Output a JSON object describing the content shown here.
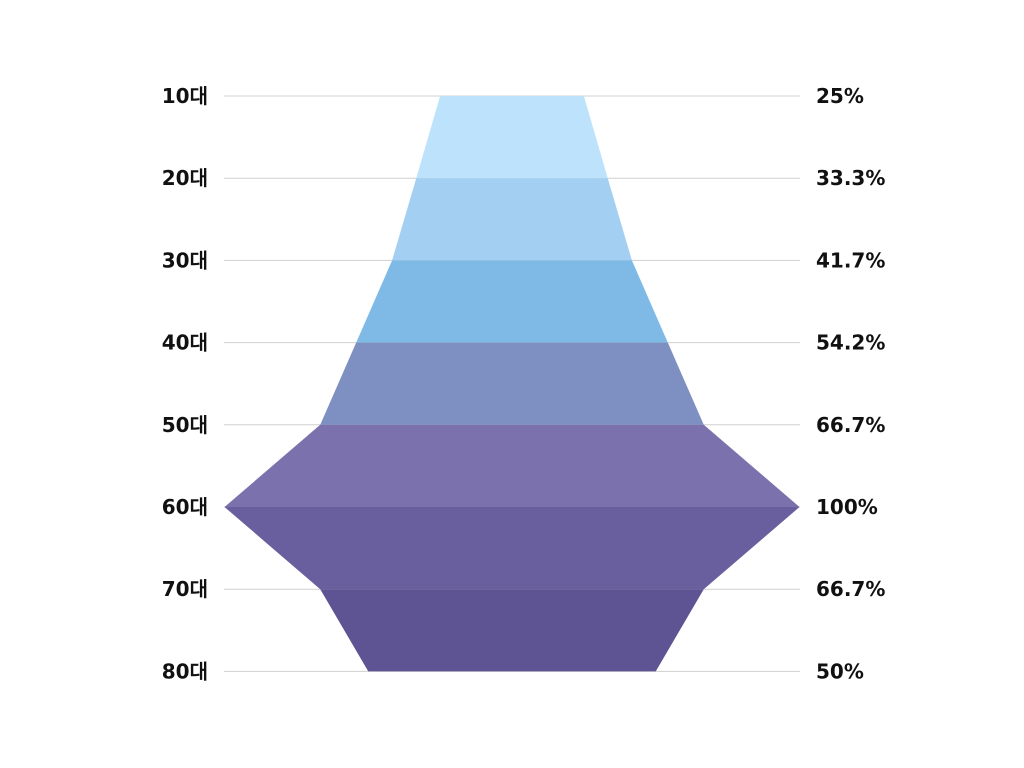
{
  "chart_data": {
    "type": "funnel",
    "categories": [
      "10대",
      "20대",
      "30대",
      "40대",
      "50대",
      "60대",
      "70대",
      "80대"
    ],
    "values": [
      25,
      33.3,
      41.7,
      54.2,
      66.7,
      100,
      66.7,
      50
    ],
    "value_labels": [
      "25%",
      "33.3%",
      "41.7%",
      "54.2%",
      "66.7%",
      "100%",
      "66.7%",
      "50%"
    ],
    "unit": "%",
    "max": 100,
    "grid": true,
    "band_colors": [
      "#bde2fc",
      "#a2cff2",
      "#7fbae6",
      "#7e90c2",
      "#7b71ac",
      "#6a5f9e",
      "#5f5493"
    ]
  }
}
